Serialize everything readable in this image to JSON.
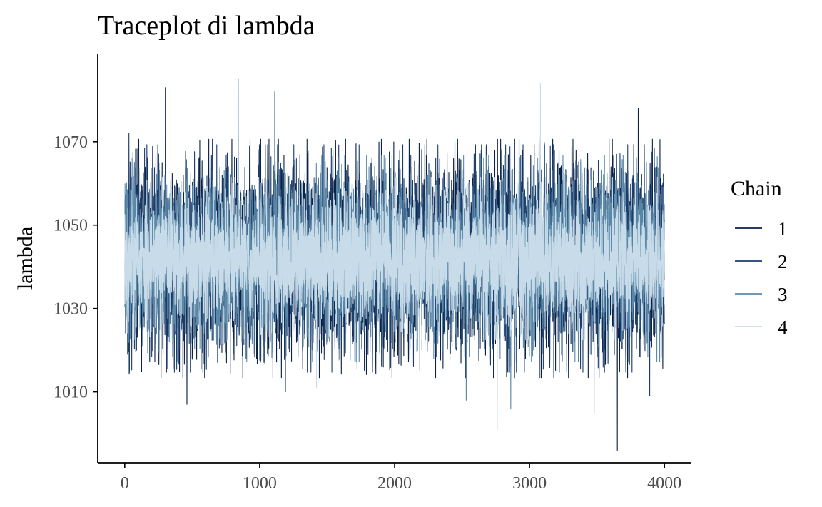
{
  "chart_data": {
    "type": "line",
    "title": "Traceplot di lambda",
    "xlabel": "",
    "ylabel": "lambda",
    "xlim": [
      -200,
      4200
    ],
    "ylim": [
      993,
      1091
    ],
    "xticks": [
      0,
      1000,
      2000,
      3000,
      4000
    ],
    "xtick_labels": [
      "0",
      "1000",
      "2000",
      "3000",
      "4000"
    ],
    "yticks": [
      1010,
      1030,
      1050,
      1070
    ],
    "ytick_labels": [
      "1010",
      "1030",
      "1050",
      "1070"
    ],
    "grid": false,
    "legend": {
      "title": "Chain",
      "placement": "right"
    },
    "iterations": 4000,
    "series": [
      {
        "name": "1",
        "color": "#0b2146",
        "mean": 1042,
        "sd": 11,
        "seed": 11,
        "extremes": [
          [
            300,
            1083
          ],
          [
            3650,
            996
          ],
          [
            3805,
            1078
          ],
          [
            460,
            1007
          ]
        ]
      },
      {
        "name": "2",
        "color": "#1d3d6b",
        "mean": 1042,
        "sd": 10.5,
        "seed": 23,
        "extremes": [
          [
            30,
            1072
          ],
          [
            1190,
            1010
          ],
          [
            3890,
            1009
          ]
        ]
      },
      {
        "name": "3",
        "color": "#5a88a8",
        "mean": 1042,
        "sd": 9.5,
        "seed": 37,
        "extremes": [
          [
            840,
            1085
          ],
          [
            1110,
            1082
          ],
          [
            2530,
            1008
          ],
          [
            2860,
            1006
          ]
        ]
      },
      {
        "name": "4",
        "color": "#c8dbe8",
        "mean": 1042,
        "sd": 7.5,
        "seed": 53,
        "extremes": [
          [
            2760,
            1001
          ],
          [
            3080,
            1084
          ],
          [
            3480,
            1005
          ],
          [
            1420,
            1011
          ]
        ]
      }
    ]
  }
}
